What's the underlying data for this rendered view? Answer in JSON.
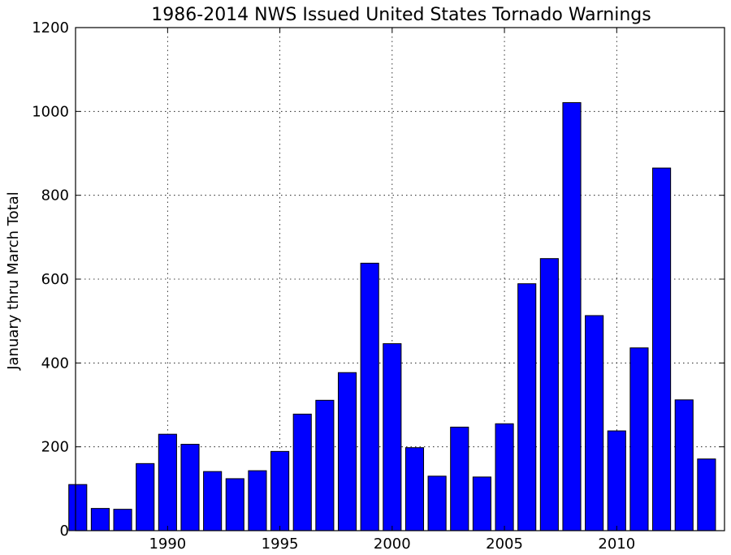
{
  "chart_data": {
    "type": "bar",
    "title": "1986-2014 NWS Issued United States Tornado Warnings",
    "xlabel": "",
    "ylabel": "January thru March Total",
    "x": [
      1986,
      1987,
      1988,
      1989,
      1990,
      1991,
      1992,
      1993,
      1994,
      1995,
      1996,
      1997,
      1998,
      1999,
      2000,
      2001,
      2002,
      2003,
      2004,
      2005,
      2006,
      2007,
      2008,
      2009,
      2010,
      2011,
      2012,
      2013,
      2014
    ],
    "values": [
      110,
      53,
      51,
      160,
      230,
      206,
      141,
      124,
      143,
      189,
      278,
      311,
      377,
      638,
      446,
      198,
      130,
      247,
      128,
      255,
      589,
      649,
      1021,
      513,
      238,
      436,
      865,
      312,
      171
    ],
    "xticks": [
      "1990",
      "1995",
      "2000",
      "2005",
      "2010"
    ],
    "yticks": [
      "0",
      "200",
      "400",
      "600",
      "800",
      "1000",
      "1200"
    ],
    "ylim": [
      0,
      1200
    ],
    "xlim": [
      1985.9,
      2014.8
    ],
    "grid": true,
    "bar_color": "#0000ff",
    "edge_color": "#000000"
  }
}
